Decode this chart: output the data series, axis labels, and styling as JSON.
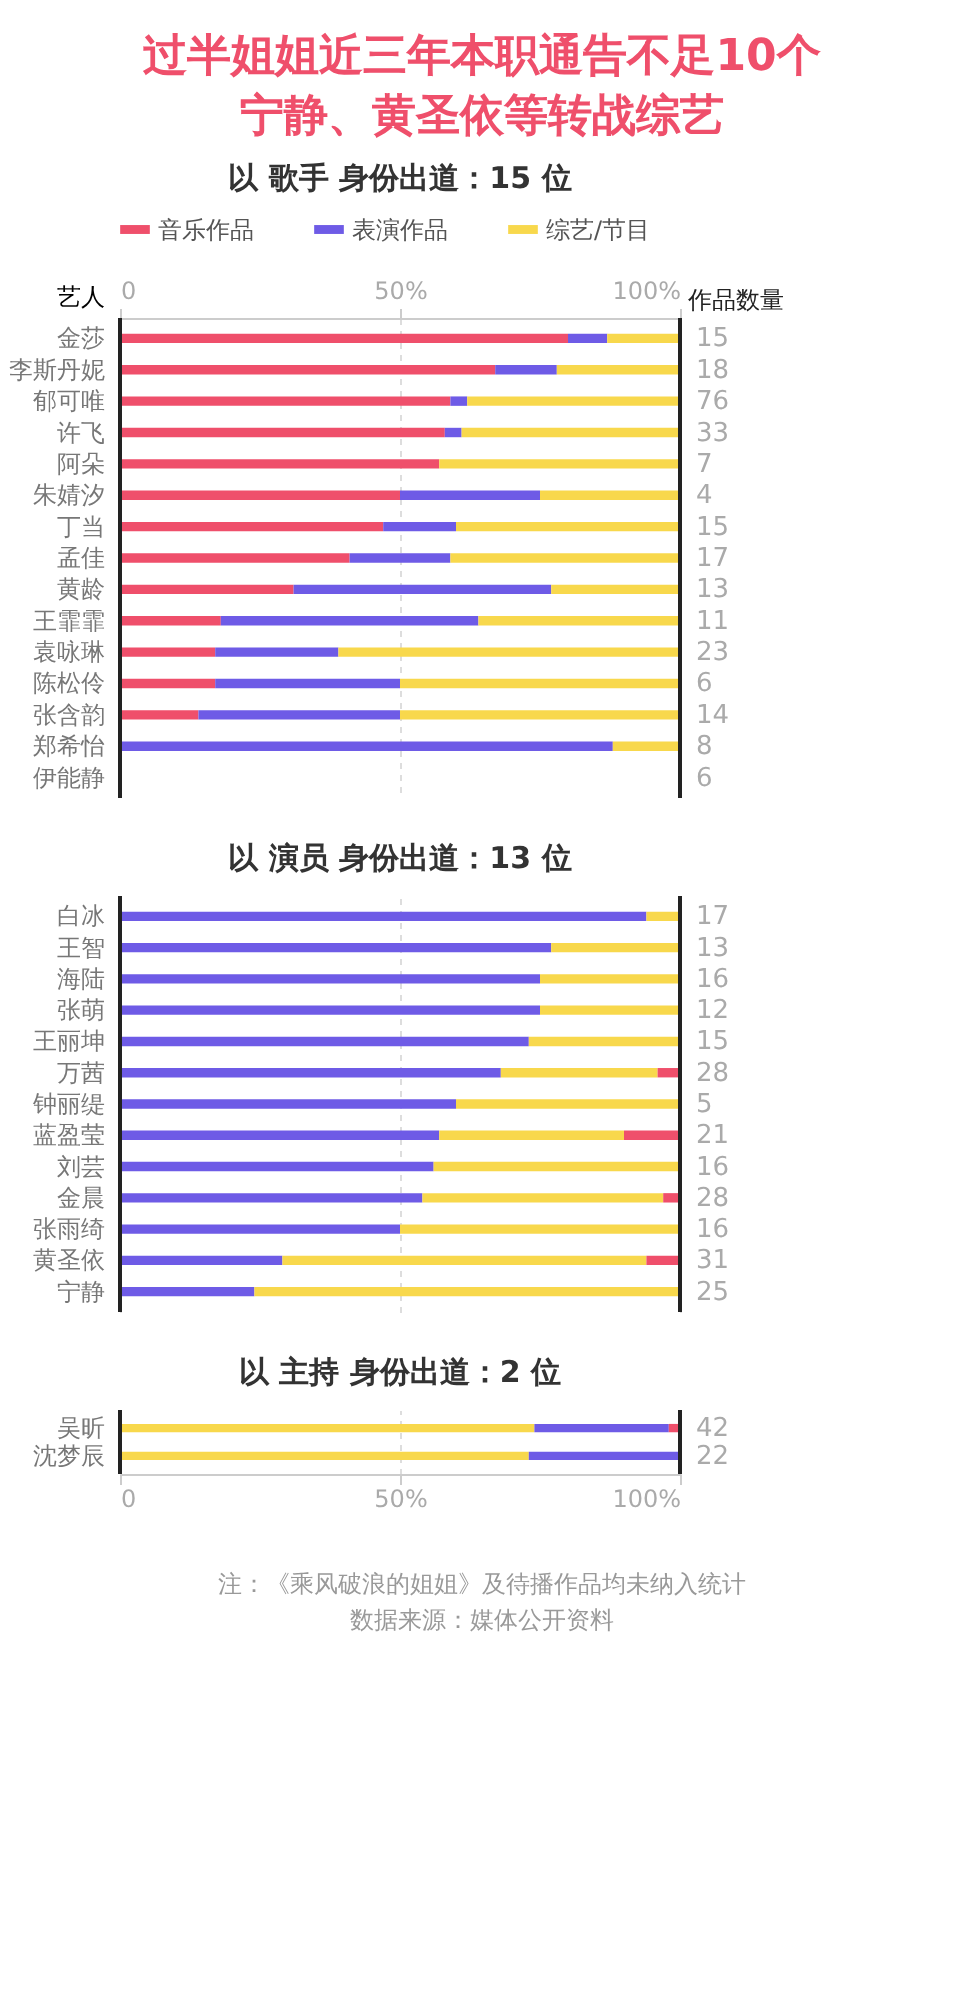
{
  "chart_data": [
    {
      "type": "bar",
      "orientation": "horizontal",
      "stacked": true,
      "title": "过半姐姐近三年本职通告不足10个宁静、黄圣依等转战综艺",
      "subtitle": "以 歌手 身份出道：15 位",
      "ylabel": "艺人",
      "y2label": "作品数量",
      "legend": "top",
      "grid": "x",
      "xlim": [
        0,
        100
      ],
      "xticks": [
        0,
        {
          "value": 50,
          "label": "50%"
        },
        {
          "value": 100,
          "label": "100%"
        }
      ],
      "categories": [
        "金莎",
        "李斯丹妮",
        "郁可唯",
        "许飞",
        "阿朵",
        "朱婧汐",
        "丁当",
        "孟佳",
        "黄龄",
        "王霏霏",
        "袁咏琳",
        "陈松伶",
        "张含韵",
        "郑希怡",
        "伊能静"
      ],
      "series": [
        {
          "name": "音乐作品",
          "color": "#ef4f6b",
          "values": [
            80,
            67,
            59,
            58,
            57,
            50,
            47,
            41,
            31,
            18,
            17,
            17,
            14,
            0,
            null
          ]
        },
        {
          "name": "表演作品",
          "color": "#6e5be6",
          "values": [
            7,
            11,
            3,
            3,
            0,
            25,
            13,
            18,
            46,
            46,
            22,
            33,
            36,
            88,
            null
          ]
        },
        {
          "name": "综艺/节目",
          "color": "#f8d84c",
          "values": [
            13,
            22,
            38,
            39,
            43,
            25,
            40,
            41,
            23,
            36,
            61,
            50,
            50,
            12,
            null
          ]
        }
      ],
      "annotations": [
        "15",
        "18",
        "76",
        "33",
        "7",
        "4",
        "15",
        "17",
        "13",
        "11",
        "23",
        "6",
        "14",
        "8",
        "6"
      ]
    },
    {
      "type": "bar",
      "orientation": "horizontal",
      "stacked": true,
      "title": "以 演员 身份出道：13 位",
      "grid": "x",
      "tick_labels": "y",
      "xlim": [
        0,
        100
      ],
      "xticks": [
        {
          "value": 0,
          "label": null
        },
        {
          "value": 50,
          "label": null
        },
        {
          "value": 100,
          "label": null
        }
      ],
      "categories": [
        "白冰",
        "王智",
        "海陆",
        "张萌",
        "王丽坤",
        "万茜",
        "钟丽缇",
        "蓝盈莹",
        "刘芸",
        "金晨",
        "张雨绮",
        "黄圣依",
        "宁静"
      ],
      "series": [
        {
          "color": "#6e5be6",
          "values": [
            94,
            77,
            75,
            75,
            73,
            68,
            60,
            57,
            56,
            54,
            50,
            29,
            24
          ]
        },
        {
          "color": "#f8d84c",
          "values": [
            6,
            23,
            25,
            25,
            27,
            28,
            40,
            33,
            44,
            43,
            50,
            65,
            76
          ]
        },
        {
          "color": "#ef4f6b",
          "values": [
            0,
            0,
            0,
            0,
            0,
            4,
            0,
            10,
            0,
            3,
            0,
            6,
            0
          ]
        }
      ],
      "annotations": [
        "17",
        "13",
        "16",
        "12",
        "15",
        "28",
        "5",
        "21",
        "16",
        "28",
        "16",
        "31",
        "25"
      ]
    },
    {
      "type": "bar",
      "orientation": "horizontal",
      "stacked": true,
      "title": "以 主持 身份出道：2 位",
      "grid": "x",
      "xlim": [
        0,
        100
      ],
      "xticks": [
        0,
        {
          "value": 50,
          "label": "50%"
        },
        {
          "value": 100,
          "label": "100%"
        }
      ],
      "categories": [
        "吴昕",
        "沈梦辰"
      ],
      "series": [
        {
          "color": "#f8d84c",
          "values": [
            74,
            73
          ]
        },
        {
          "color": "#6e5be6",
          "values": [
            24,
            27
          ]
        },
        {
          "color": "#ef4f6b",
          "values": [
            2,
            0
          ]
        }
      ],
      "annotations": [
        "42",
        "22",
        "注：《乘风破浪的姐姐》及待播作品均未纳入统计",
        "数据来源：媒体公开资料"
      ]
    }
  ]
}
